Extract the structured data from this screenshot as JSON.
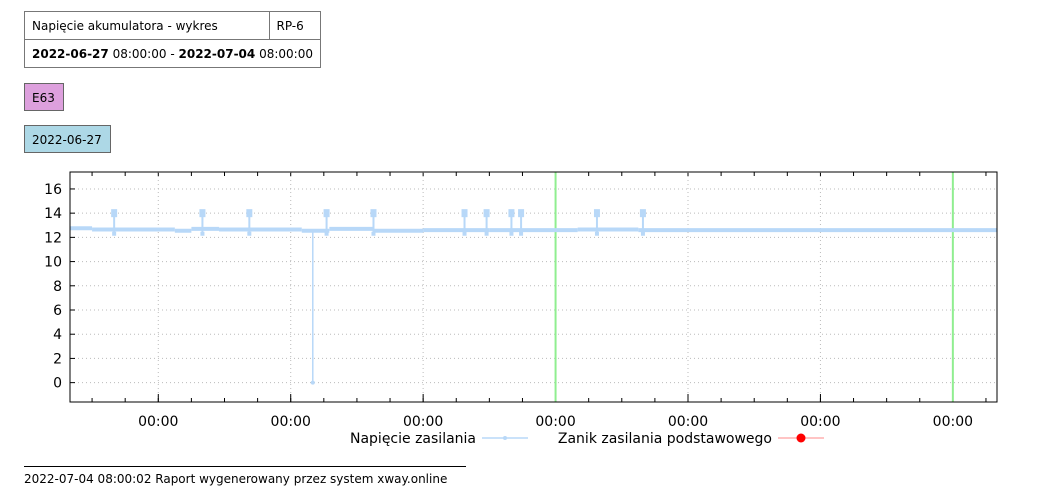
{
  "header": {
    "title": "Napięcie akumulatora - wykres",
    "code": "RP-6",
    "range_start_date": "2022-06-27",
    "range_start_time": "08:00:00",
    "range_sep": "-",
    "range_end_date": "2022-07-04",
    "range_end_time": "08:00:00"
  },
  "object_tag": "E63",
  "date_tag": "2022-06-27",
  "footer": "2022-07-04 08:00:02 Raport wygenerowany przez system xway.online",
  "colors": {
    "series": "#b8d8f8",
    "outage": "#ff0000",
    "midnight": "#90ee90"
  },
  "chart_data": {
    "type": "line",
    "title": "",
    "xlabel": "",
    "ylabel": "",
    "ylim": [
      -1.6,
      17.4
    ],
    "yticks": [
      0,
      2,
      4,
      6,
      8,
      10,
      12,
      14,
      16
    ],
    "xlim": [
      "2022-06-27 08:00",
      "2022-07-04 08:00"
    ],
    "xticks": [
      "2022-06-28 00:00",
      "2022-06-29 00:00",
      "2022-06-30 00:00",
      "2022-07-01 00:00",
      "2022-07-02 00:00",
      "2022-07-03 00:00",
      "2022-07-04 00:00"
    ],
    "xtick_labels": [
      "00:00",
      "00:00",
      "00:00",
      "00:00",
      "00:00",
      "00:00",
      "00:00"
    ],
    "minor_step_hours": 6,
    "grid": true,
    "midnight_lines": [
      "2022-07-01 00:00",
      "2022-07-04 00:00"
    ],
    "baseline": [
      {
        "start": "2022-06-27 08:00",
        "end": "2022-06-27 12:00",
        "value": 12.75
      },
      {
        "start": "2022-06-27 12:00",
        "end": "2022-06-28 03:00",
        "value": 12.65
      },
      {
        "start": "2022-06-28 03:00",
        "end": "2022-06-28 06:00",
        "value": 12.55
      },
      {
        "start": "2022-06-28 06:00",
        "end": "2022-06-28 11:00",
        "value": 12.7
      },
      {
        "start": "2022-06-28 11:00",
        "end": "2022-06-29 02:00",
        "value": 12.65
      },
      {
        "start": "2022-06-29 02:00",
        "end": "2022-06-29 07:00",
        "value": 12.55
      },
      {
        "start": "2022-06-29 07:00",
        "end": "2022-06-29 15:00",
        "value": 12.7
      },
      {
        "start": "2022-06-29 15:00",
        "end": "2022-06-30 00:00",
        "value": 12.55
      },
      {
        "start": "2022-06-30 00:00",
        "end": "2022-06-30 12:00",
        "value": 12.6
      },
      {
        "start": "2022-06-30 12:00",
        "end": "2022-07-01 04:00",
        "value": 12.6
      },
      {
        "start": "2022-07-01 04:00",
        "end": "2022-07-01 15:00",
        "value": 12.65
      },
      {
        "start": "2022-07-01 15:00",
        "end": "2022-07-04 08:00",
        "value": 12.6
      }
    ],
    "spikes": [
      {
        "x": "2022-06-27 16:00",
        "y": 14.0,
        "low": 12.3
      },
      {
        "x": "2022-06-28 08:00",
        "y": 14.0,
        "low": 12.3
      },
      {
        "x": "2022-06-28 16:30",
        "y": 14.0,
        "low": 12.3
      },
      {
        "x": "2022-06-29 06:30",
        "y": 14.0,
        "low": 12.3
      },
      {
        "x": "2022-06-29 15:00",
        "y": 14.0,
        "low": 12.3
      },
      {
        "x": "2022-06-30 07:30",
        "y": 14.0,
        "low": 12.3
      },
      {
        "x": "2022-06-30 11:30",
        "y": 14.0,
        "low": 12.3
      },
      {
        "x": "2022-06-30 16:00",
        "y": 14.0,
        "low": 12.3
      },
      {
        "x": "2022-06-30 17:45",
        "y": 14.0,
        "low": 12.3
      },
      {
        "x": "2022-07-01 07:30",
        "y": 14.0,
        "low": 12.3
      },
      {
        "x": "2022-07-01 15:50",
        "y": 14.0,
        "low": 12.3
      }
    ],
    "dips": [
      {
        "x": "2022-06-29 04:00",
        "y": 0
      }
    ],
    "series": [
      {
        "name": "Napięcie zasilania"
      },
      {
        "name": "Zanik zasilania podstawowego"
      }
    ]
  }
}
